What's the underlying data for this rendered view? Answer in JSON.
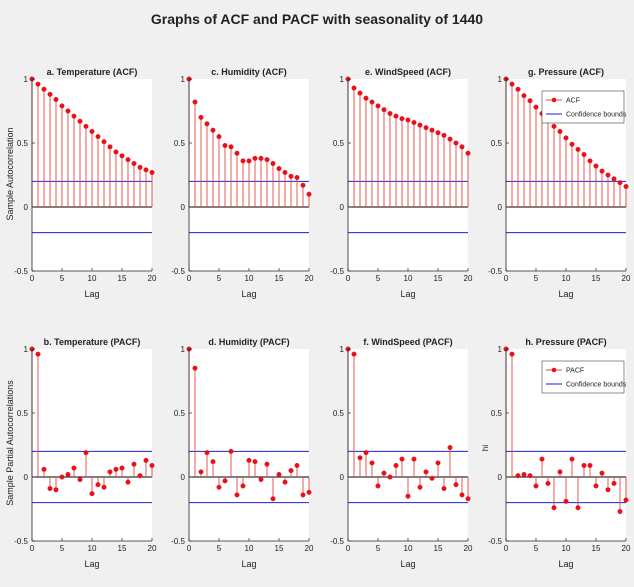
{
  "figure": {
    "title": "Graphs of ACF and PACF with seasonality of 1440",
    "ylabels": [
      "Sample Autocorrelation",
      "Sample Partial Autocorrelations"
    ],
    "stray_label": "hi",
    "colors": {
      "stem": "#e8483f",
      "marker": "#e8101a",
      "bounds": "#1f1fd0",
      "zero": "#000000"
    }
  },
  "chart_data": [
    {
      "type": "stem",
      "title": "a. Temperature (ACF)",
      "xlabel": "Lag",
      "xlim": [
        0,
        20
      ],
      "ylim": [
        -0.5,
        1
      ],
      "xticks": [
        0,
        5,
        10,
        15,
        20
      ],
      "yticks": [
        -0.5,
        0,
        0.5,
        1
      ],
      "bounds": [
        0.2,
        -0.2
      ],
      "legend": null,
      "values": [
        1.0,
        0.96,
        0.92,
        0.88,
        0.84,
        0.79,
        0.75,
        0.71,
        0.67,
        0.63,
        0.59,
        0.55,
        0.51,
        0.47,
        0.43,
        0.4,
        0.37,
        0.34,
        0.31,
        0.29,
        0.27
      ]
    },
    {
      "type": "stem",
      "title": "c. Humidity (ACF)",
      "xlabel": "Lag",
      "xlim": [
        0,
        20
      ],
      "ylim": [
        -0.5,
        1
      ],
      "xticks": [
        0,
        5,
        10,
        15,
        20
      ],
      "yticks": [
        -0.5,
        0,
        0.5,
        1
      ],
      "bounds": [
        0.2,
        -0.2
      ],
      "legend": null,
      "values": [
        1.0,
        0.82,
        0.7,
        0.65,
        0.6,
        0.55,
        0.48,
        0.47,
        0.42,
        0.36,
        0.36,
        0.38,
        0.38,
        0.37,
        0.34,
        0.3,
        0.27,
        0.24,
        0.23,
        0.17,
        0.1
      ]
    },
    {
      "type": "stem",
      "title": "e. WindSpeed (ACF)",
      "xlabel": "Lag",
      "xlim": [
        0,
        20
      ],
      "ylim": [
        -0.5,
        1
      ],
      "xticks": [
        0,
        5,
        10,
        15,
        20
      ],
      "yticks": [
        -0.5,
        0,
        0.5,
        1
      ],
      "bounds": [
        0.2,
        -0.2
      ],
      "legend": null,
      "values": [
        1.0,
        0.93,
        0.89,
        0.85,
        0.82,
        0.79,
        0.76,
        0.73,
        0.71,
        0.69,
        0.68,
        0.66,
        0.64,
        0.62,
        0.6,
        0.58,
        0.56,
        0.53,
        0.5,
        0.47,
        0.42
      ]
    },
    {
      "type": "stem",
      "title": "g. Pressure (ACF)",
      "xlabel": "Lag",
      "xlim": [
        0,
        20
      ],
      "ylim": [
        -0.5,
        1
      ],
      "xticks": [
        0,
        5,
        10,
        15,
        20
      ],
      "yticks": [
        -0.5,
        0,
        0.5,
        1
      ],
      "bounds": [
        0.2,
        -0.2
      ],
      "legend": [
        "ACF",
        "Confidence bounds"
      ],
      "values": [
        1.0,
        0.96,
        0.92,
        0.87,
        0.83,
        0.78,
        0.73,
        0.68,
        0.63,
        0.59,
        0.54,
        0.49,
        0.45,
        0.41,
        0.36,
        0.32,
        0.28,
        0.25,
        0.22,
        0.19,
        0.16
      ]
    },
    {
      "type": "stem",
      "title": "b. Temperature (PACF)",
      "xlabel": "Lag",
      "xlim": [
        0,
        20
      ],
      "ylim": [
        -0.5,
        1
      ],
      "xticks": [
        0,
        5,
        10,
        15,
        20
      ],
      "yticks": [
        -0.5,
        0,
        0.5,
        1
      ],
      "bounds": [
        0.2,
        -0.2
      ],
      "legend": null,
      "values": [
        1.0,
        0.96,
        0.06,
        -0.09,
        -0.1,
        0.0,
        0.02,
        0.07,
        -0.02,
        0.19,
        -0.13,
        -0.06,
        -0.08,
        0.04,
        0.06,
        0.07,
        -0.04,
        0.1,
        0.01,
        0.13,
        0.09
      ]
    },
    {
      "type": "stem",
      "title": "d. Humidity (PACF)",
      "xlabel": "Lag",
      "xlim": [
        0,
        20
      ],
      "ylim": [
        -0.5,
        1
      ],
      "xticks": [
        0,
        5,
        10,
        15,
        20
      ],
      "yticks": [
        -0.5,
        0,
        0.5,
        1
      ],
      "bounds": [
        0.2,
        -0.2
      ],
      "legend": null,
      "values": [
        1.0,
        0.85,
        0.04,
        0.19,
        0.12,
        -0.08,
        -0.03,
        0.2,
        -0.14,
        -0.07,
        0.13,
        0.12,
        -0.02,
        0.1,
        -0.17,
        0.02,
        -0.04,
        0.05,
        0.09,
        -0.14,
        -0.12
      ]
    },
    {
      "type": "stem",
      "title": "f. WindSpeed (PACF)",
      "xlabel": "Lag",
      "xlim": [
        0,
        20
      ],
      "ylim": [
        -0.5,
        1
      ],
      "xticks": [
        0,
        5,
        10,
        15,
        20
      ],
      "yticks": [
        -0.5,
        0,
        0.5,
        1
      ],
      "bounds": [
        0.2,
        -0.2
      ],
      "legend": null,
      "values": [
        1.0,
        0.96,
        0.15,
        0.19,
        0.11,
        -0.07,
        0.03,
        0.0,
        0.09,
        0.14,
        -0.15,
        0.14,
        -0.08,
        0.04,
        -0.01,
        0.11,
        -0.09,
        0.23,
        -0.06,
        -0.14,
        -0.17
      ]
    },
    {
      "type": "stem",
      "title": "h. Pressure (PACF)",
      "xlabel": "Lag",
      "xlim": [
        0,
        20
      ],
      "ylim": [
        -0.5,
        1
      ],
      "xticks": [
        0,
        5,
        10,
        15,
        20
      ],
      "yticks": [
        -0.5,
        0,
        0.5,
        1
      ],
      "bounds": [
        0.2,
        -0.2
      ],
      "legend": [
        "PACF",
        "Confidence bounds"
      ],
      "values": [
        1.0,
        0.96,
        0.01,
        0.02,
        0.01,
        -0.07,
        0.14,
        -0.05,
        -0.24,
        0.04,
        -0.19,
        0.14,
        -0.24,
        0.09,
        0.09,
        -0.07,
        0.03,
        -0.1,
        -0.05,
        -0.27,
        -0.18
      ]
    }
  ]
}
